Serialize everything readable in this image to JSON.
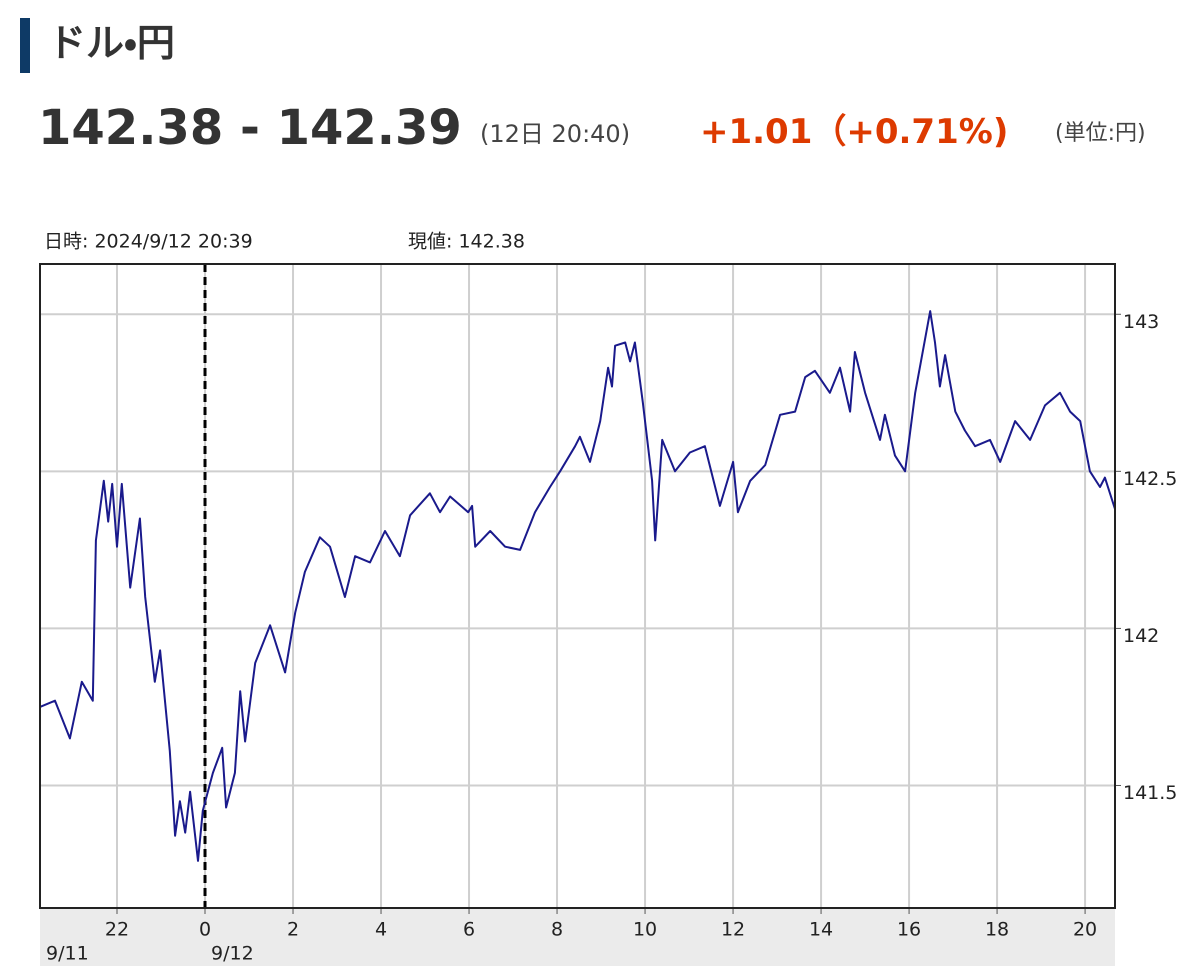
{
  "header": {
    "title": "ドル・円",
    "quote": "142.38 - 142.39",
    "time": "(12日 20:40)",
    "change": "+1.01（+0.71%)",
    "unit": "(単位:円)"
  },
  "chart_data": {
    "type": "line",
    "annotations": [
      "日時: 2024/9/12  20:39",
      "現値: 142.38"
    ],
    "x": [
      -3.75,
      -3.41,
      -3.07,
      -2.8,
      -2.55,
      -2.48,
      -2.3,
      -2.2,
      -2.11,
      -2.0,
      -1.89,
      -1.7,
      -1.48,
      -1.36,
      -1.14,
      -1.02,
      -0.8,
      -0.68,
      -0.57,
      -0.45,
      -0.34,
      -0.16,
      -0.05,
      0.18,
      0.39,
      0.48,
      0.68,
      0.8,
      0.91,
      1.14,
      1.48,
      1.82,
      2.05,
      2.27,
      2.61,
      2.84,
      3.18,
      3.41,
      3.75,
      4.09,
      4.43,
      4.66,
      5.11,
      5.34,
      5.57,
      5.98,
      6.07,
      6.14,
      6.48,
      6.82,
      7.16,
      7.5,
      7.84,
      8.07,
      8.41,
      8.52,
      8.75,
      8.98,
      9.16,
      9.25,
      9.32,
      9.55,
      9.66,
      9.77,
      9.95,
      10.16,
      10.23,
      10.39,
      10.68,
      11.02,
      11.36,
      11.7,
      12.0,
      12.11,
      12.39,
      12.73,
      13.07,
      13.41,
      13.64,
      13.86,
      14.2,
      14.43,
      14.66,
      14.77,
      15.0,
      15.34,
      15.45,
      15.68,
      15.91,
      16.14,
      16.48,
      16.59,
      16.7,
      16.82,
      17.05,
      17.27,
      17.5,
      17.84,
      18.07,
      18.41,
      18.75,
      19.09,
      19.43,
      19.66,
      19.89,
      20.11,
      20.34,
      20.45,
      20.68
    ],
    "series": [
      {
        "color": "#1a1a8c",
        "values": [
          141.75,
          141.77,
          141.65,
          141.83,
          141.77,
          142.28,
          142.47,
          142.34,
          142.46,
          142.26,
          142.46,
          142.13,
          142.35,
          142.1,
          141.83,
          141.93,
          141.61,
          141.34,
          141.45,
          141.35,
          141.48,
          141.26,
          141.42,
          141.54,
          141.62,
          141.43,
          141.54,
          141.8,
          141.64,
          141.89,
          142.01,
          141.86,
          142.05,
          142.18,
          142.29,
          142.26,
          142.1,
          142.23,
          142.21,
          142.31,
          142.23,
          142.36,
          142.43,
          142.37,
          142.42,
          142.37,
          142.39,
          142.26,
          142.31,
          142.26,
          142.25,
          142.37,
          142.45,
          142.5,
          142.58,
          142.61,
          142.53,
          142.66,
          142.83,
          142.77,
          142.9,
          142.91,
          142.85,
          142.91,
          142.72,
          142.47,
          142.28,
          142.6,
          142.5,
          142.56,
          142.58,
          142.39,
          142.53,
          142.37,
          142.47,
          142.52,
          142.68,
          142.69,
          142.8,
          142.82,
          142.75,
          142.83,
          142.69,
          142.88,
          142.75,
          142.6,
          142.68,
          142.55,
          142.5,
          142.75,
          143.01,
          142.91,
          142.77,
          142.87,
          142.69,
          142.63,
          142.58,
          142.6,
          142.53,
          142.66,
          142.6,
          142.71,
          142.75,
          142.69,
          142.66,
          142.5,
          142.45,
          142.48,
          142.38
        ]
      }
    ],
    "xlim": [
      -3.75,
      20.68
    ],
    "xticks": [
      {
        "value": -2,
        "label": "22"
      },
      0,
      2,
      4,
      6,
      8,
      10,
      12,
      14,
      16,
      18,
      20
    ],
    "date_labels": [
      {
        "value": -3.75,
        "label": "9/11"
      },
      {
        "value": 0,
        "label": "9/12"
      }
    ],
    "ylim": [
      141.11,
      143.16
    ],
    "yticks": [
      141.5,
      142,
      142.5,
      143
    ],
    "grid": true
  }
}
